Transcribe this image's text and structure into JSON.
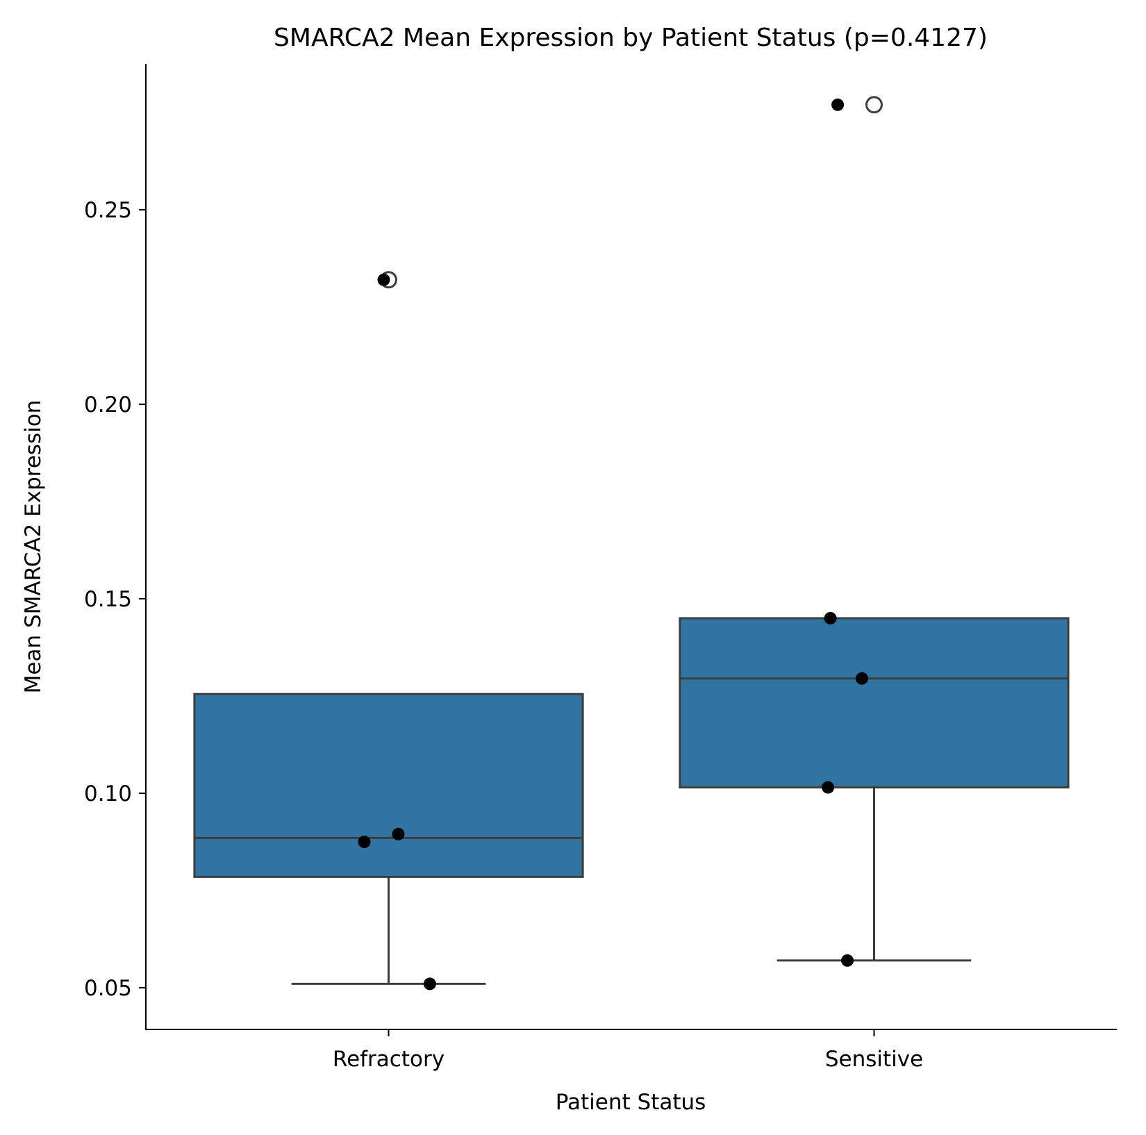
{
  "chart_data": {
    "type": "box",
    "title": "SMARCA2 Mean Expression by Patient Status (p=0.4127)",
    "xlabel": "Patient Status",
    "ylabel": "Mean SMARCA2 Expression",
    "categories": [
      "Refractory",
      "Sensitive"
    ],
    "ylim": [
      0.04,
      0.283
    ],
    "yticks": [
      0.05,
      0.1,
      0.15,
      0.2,
      0.25
    ],
    "ytick_labels": [
      "0.05",
      "0.10",
      "0.15",
      "0.20",
      "0.25"
    ],
    "grid": false,
    "box_color": "#3274a1",
    "edge_color": "#3d3d3d",
    "point_color": "#000000",
    "boxes": [
      {
        "category": "Refractory",
        "whisker_low": 0.051,
        "q1": 0.0785,
        "median": 0.0885,
        "q3": 0.1255,
        "whisker_high": 0.1255,
        "outliers": [
          0.232
        ],
        "points": [
          {
            "jitter": -0.01,
            "y": 0.232
          },
          {
            "jitter": -0.05,
            "y": 0.0875
          },
          {
            "jitter": 0.02,
            "y": 0.0895
          },
          {
            "jitter": 0.085,
            "y": 0.051
          }
        ]
      },
      {
        "category": "Sensitive",
        "whisker_low": 0.057,
        "q1": 0.1015,
        "median": 0.1295,
        "q3": 0.145,
        "whisker_high": 0.145,
        "outliers": [
          0.277
        ],
        "points": [
          {
            "jitter": -0.075,
            "y": 0.277
          },
          {
            "jitter": -0.09,
            "y": 0.145
          },
          {
            "jitter": -0.025,
            "y": 0.1295
          },
          {
            "jitter": -0.095,
            "y": 0.1015
          },
          {
            "jitter": -0.055,
            "y": 0.057
          }
        ]
      }
    ]
  }
}
